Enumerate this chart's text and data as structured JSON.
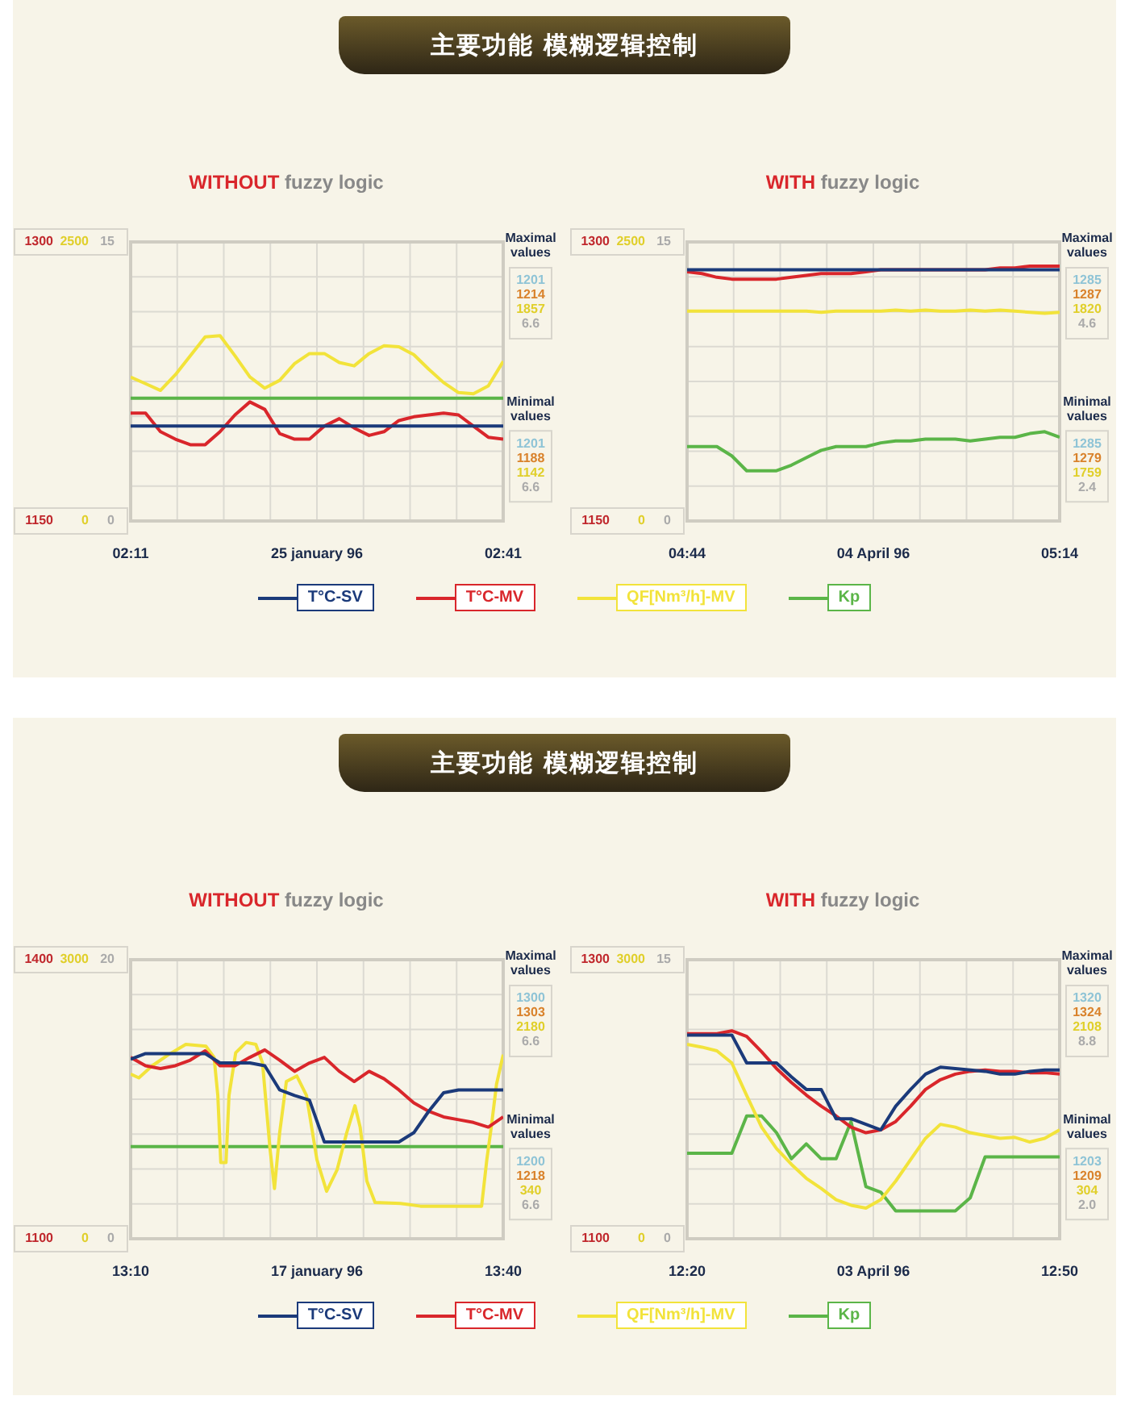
{
  "chart_data": [
    {
      "type": "line",
      "title": "主要功能 模糊逻辑控制",
      "subtitle": "WITHOUT fuzzy logic",
      "xlabel": "25 january 96",
      "grid": true,
      "marker": "none",
      "x": [
        2.183,
        2.203,
        2.223,
        2.243,
        2.263,
        2.283,
        2.303,
        2.323,
        2.343,
        2.363,
        2.383,
        2.403,
        2.423,
        2.443,
        2.463,
        2.483,
        2.503,
        2.523,
        2.543,
        2.563,
        2.583,
        2.603,
        2.623,
        2.643,
        2.663,
        2.683
      ],
      "xlim": [
        2.183,
        2.683
      ],
      "xticks": [
        {
          "value": 2.183,
          "label": "02:11"
        },
        {
          "value": 2.683,
          "label": "02:41"
        }
      ],
      "ylim": [
        1150,
        1300
      ],
      "yticks": [
        1150,
        1300
      ],
      "y2lim": [
        0,
        2500
      ],
      "y2ticks": [
        0,
        2500
      ],
      "y3lim": [
        0,
        15
      ],
      "y3ticks": [
        0,
        15
      ],
      "series": [
        {
          "color": "#1b3a7a",
          "axis": "y",
          "values": [
            1201,
            1201,
            1201,
            1201,
            1201,
            1201,
            1201,
            1201,
            1201,
            1201,
            1201,
            1201,
            1201,
            1201,
            1201,
            1201,
            1201,
            1201,
            1201,
            1201,
            1201,
            1201,
            1201,
            1201,
            1201,
            1201
          ]
        },
        {
          "color": "#d9262b",
          "axis": "y",
          "values": [
            1208,
            1208,
            1198,
            1194,
            1191,
            1191,
            1198,
            1207,
            1214,
            1210,
            1197,
            1194,
            1194,
            1201,
            1205,
            1200,
            1196,
            1198,
            1204,
            1206,
            1207,
            1208,
            1207,
            1201,
            1195,
            1194
          ]
        },
        {
          "color": "#f2e33a",
          "axis": "y2",
          "values": [
            1290,
            1230,
            1170,
            1310,
            1480,
            1650,
            1660,
            1480,
            1290,
            1190,
            1260,
            1410,
            1500,
            1500,
            1420,
            1390,
            1500,
            1570,
            1560,
            1490,
            1360,
            1240,
            1150,
            1140,
            1210,
            1430
          ]
        },
        {
          "color": "#5bb548",
          "axis": "y3",
          "values": [
            6.6,
            6.6,
            6.6,
            6.6,
            6.6,
            6.6,
            6.6,
            6.6,
            6.6,
            6.6,
            6.6,
            6.6,
            6.6,
            6.6,
            6.6,
            6.6,
            6.6,
            6.6,
            6.6,
            6.6,
            6.6,
            6.6,
            6.6,
            6.6,
            6.6,
            6.6
          ]
        }
      ],
      "annotations": [
        "Maximal values",
        "1201",
        "1214",
        "1857",
        "6.6",
        "Minimal values",
        "1201",
        "1188",
        "1142",
        "6.6"
      ]
    },
    {
      "type": "line",
      "subtitle": "WITH fuzzy logic",
      "xlabel": "04 April 96",
      "grid": true,
      "marker": "none",
      "legend": "bottom",
      "x": [
        4.733,
        4.753,
        4.773,
        4.793,
        4.813,
        4.833,
        4.853,
        4.873,
        4.893,
        4.913,
        4.933,
        4.953,
        4.973,
        4.993,
        5.013,
        5.033,
        5.053,
        5.073,
        5.093,
        5.113,
        5.133,
        5.153,
        5.173,
        5.193,
        5.213,
        5.233
      ],
      "xlim": [
        4.733,
        5.233
      ],
      "xticks": [
        {
          "value": 4.733,
          "label": "04:44"
        },
        {
          "value": 5.233,
          "label": "05:14"
        }
      ],
      "ylim": [
        1150,
        1300
      ],
      "yticks": [
        1150,
        1300
      ],
      "y2lim": [
        0,
        2500
      ],
      "y2ticks": [
        0,
        2500
      ],
      "y3lim": [
        0,
        15
      ],
      "y3ticks": [
        0,
        15
      ],
      "series": [
        {
          "name": "T°C-SV",
          "color": "#1b3a7a",
          "axis": "y",
          "values": [
            1285,
            1285,
            1285,
            1285,
            1285,
            1285,
            1285,
            1285,
            1285,
            1285,
            1285,
            1285,
            1285,
            1285,
            1285,
            1285,
            1285,
            1285,
            1285,
            1285,
            1285,
            1285,
            1285,
            1285,
            1285,
            1285
          ]
        },
        {
          "name": "T°C-MV",
          "color": "#d9262b",
          "axis": "y",
          "values": [
            1284,
            1283,
            1281,
            1280,
            1280,
            1280,
            1280,
            1281,
            1282,
            1283,
            1283,
            1283,
            1284,
            1285,
            1285,
            1285,
            1285,
            1285,
            1285,
            1285,
            1285,
            1286,
            1286,
            1287,
            1287,
            1287
          ]
        },
        {
          "name": "QF[Nm³/h]-MV",
          "color": "#f2e33a",
          "axis": "y2",
          "values": [
            1880,
            1880,
            1880,
            1880,
            1880,
            1880,
            1880,
            1880,
            1880,
            1870,
            1880,
            1880,
            1880,
            1880,
            1890,
            1880,
            1890,
            1880,
            1880,
            1890,
            1880,
            1890,
            1880,
            1870,
            1860,
            1870
          ]
        },
        {
          "name": "Kp",
          "color": "#5bb548",
          "axis": "y3",
          "values": [
            4,
            4,
            4,
            3.5,
            2.7,
            2.7,
            2.7,
            3,
            3.4,
            3.8,
            4,
            4,
            4,
            4.2,
            4.3,
            4.3,
            4.4,
            4.4,
            4.4,
            4.3,
            4.4,
            4.5,
            4.5,
            4.7,
            4.8,
            4.5
          ]
        }
      ],
      "annotations": [
        "Maximal values",
        "1285",
        "1287",
        "1820",
        "4.6",
        "Minimal values",
        "1285",
        "1279",
        "1759",
        "2.4"
      ]
    },
    {
      "type": "line",
      "title": "主要功能 模糊逻辑控制",
      "subtitle": "WITHOUT fuzzy logic",
      "xlabel": "17 january 96",
      "grid": true,
      "marker": "none",
      "x": [
        13.167,
        13.187,
        13.207,
        13.227,
        13.247,
        13.267,
        13.287,
        13.307,
        13.327,
        13.347,
        13.367,
        13.387,
        13.407,
        13.427,
        13.447,
        13.467,
        13.487,
        13.507,
        13.527,
        13.547,
        13.567,
        13.587,
        13.607,
        13.627,
        13.647,
        13.667
      ],
      "xlim": [
        13.167,
        13.667
      ],
      "xticks": [
        {
          "value": 13.167,
          "label": "13:10"
        },
        {
          "value": 13.667,
          "label": "13:40"
        }
      ],
      "ylim": [
        1100,
        1400
      ],
      "yticks": [
        1100,
        1400
      ],
      "y2lim": [
        0,
        3000
      ],
      "y2ticks": [
        0,
        3000
      ],
      "y3lim": [
        0,
        20
      ],
      "y3ticks": [
        0,
        20
      ],
      "series": [
        {
          "color": "#1b3a7a",
          "axis": "y",
          "values": [
            1293,
            1299,
            1299,
            1299,
            1299,
            1299,
            1289,
            1289,
            1289,
            1286,
            1260,
            1254,
            1249,
            1204,
            1204,
            1204,
            1204,
            1204,
            1204,
            1214,
            1237,
            1257,
            1260,
            1260,
            1260,
            1260
          ]
        },
        {
          "color": "#d9262b",
          "axis": "y",
          "values": [
            1295,
            1286,
            1283,
            1286,
            1292,
            1302,
            1286,
            1286,
            1295,
            1303,
            1292,
            1280,
            1289,
            1295,
            1280,
            1269,
            1280,
            1272,
            1260,
            1246,
            1237,
            1231,
            1228,
            1225,
            1220,
            1231
          ]
        },
        {
          "color": "#f2e33a",
          "axis": "y2",
          "x": [
            13.167,
            13.178,
            13.196,
            13.218,
            13.241,
            13.268,
            13.279,
            13.284,
            13.288,
            13.295,
            13.299,
            13.308,
            13.322,
            13.335,
            13.344,
            13.354,
            13.36,
            13.367,
            13.376,
            13.39,
            13.403,
            13.417,
            13.43,
            13.444,
            13.457,
            13.468,
            13.475,
            13.484,
            13.495,
            13.529,
            13.556,
            13.638,
            13.645,
            13.651,
            13.658,
            13.667
          ],
          "values": [
            1770,
            1730,
            1860,
            1980,
            2090,
            2070,
            1950,
            1540,
            820,
            820,
            1540,
            2000,
            2110,
            2090,
            1890,
            970,
            540,
            1140,
            1690,
            1750,
            1540,
            850,
            510,
            740,
            1140,
            1430,
            1200,
            620,
            390,
            380,
            350,
            350,
            850,
            1200,
            1660,
            1980
          ]
        },
        {
          "color": "#5bb548",
          "axis": "y3",
          "values": [
            6.6,
            6.6,
            6.6,
            6.6,
            6.6,
            6.6,
            6.6,
            6.6,
            6.6,
            6.6,
            6.6,
            6.6,
            6.6,
            6.6,
            6.6,
            6.6,
            6.6,
            6.6,
            6.6,
            6.6,
            6.6,
            6.6,
            6.6,
            6.6,
            6.6,
            6.6
          ]
        }
      ],
      "annotations": [
        "Maximal values",
        "1300",
        "1303",
        "2180",
        "6.6",
        "Minimal values",
        "1200",
        "1218",
        "340",
        "6.6"
      ]
    },
    {
      "type": "line",
      "subtitle": "WITH fuzzy logic",
      "xlabel": "03 April 96",
      "grid": true,
      "marker": "none",
      "legend": "bottom",
      "x": [
        12.333,
        12.353,
        12.373,
        12.393,
        12.413,
        12.433,
        12.453,
        12.473,
        12.493,
        12.513,
        12.533,
        12.553,
        12.573,
        12.593,
        12.613,
        12.633,
        12.653,
        12.673,
        12.693,
        12.713,
        12.733,
        12.753,
        12.773,
        12.793,
        12.813,
        12.833
      ],
      "xlim": [
        12.333,
        12.833
      ],
      "xticks": [
        {
          "value": 12.333,
          "label": "12:20"
        },
        {
          "value": 12.833,
          "label": "12:50"
        }
      ],
      "ylim": [
        1100,
        1300
      ],
      "yticks": [
        1100,
        1300
      ],
      "y2lim": [
        0,
        3000
      ],
      "y2ticks": [
        0,
        3000
      ],
      "y3lim": [
        0,
        15
      ],
      "y3ticks": [
        0,
        15
      ],
      "series": [
        {
          "name": "T°C-SV",
          "color": "#1b3a7a",
          "axis": "y",
          "values": [
            1246,
            1246,
            1246,
            1246,
            1226,
            1226,
            1226,
            1216,
            1207,
            1207,
            1186,
            1186,
            1182,
            1178,
            1195,
            1207,
            1218,
            1223,
            1222,
            1221,
            1220,
            1218,
            1218,
            1220,
            1221,
            1221
          ]
        },
        {
          "name": "T°C-MV",
          "color": "#d9262b",
          "axis": "y",
          "values": [
            1247,
            1247,
            1247,
            1249,
            1245,
            1234,
            1222,
            1212,
            1203,
            1195,
            1188,
            1180,
            1176,
            1178,
            1184,
            1195,
            1207,
            1214,
            1218,
            1220,
            1221,
            1220,
            1220,
            1219,
            1219,
            1218
          ]
        },
        {
          "name": "QF[Nm³/h]-MV",
          "color": "#f2e33a",
          "axis": "y2",
          "values": [
            2090,
            2060,
            2020,
            1890,
            1540,
            1200,
            970,
            800,
            650,
            540,
            420,
            360,
            330,
            420,
            620,
            850,
            1080,
            1230,
            1200,
            1140,
            1110,
            1080,
            1090,
            1040,
            1080,
            1170
          ]
        },
        {
          "name": "Kp",
          "color": "#5bb548",
          "axis": "y3",
          "values": [
            4.6,
            4.6,
            4.6,
            4.6,
            6.6,
            6.6,
            5.7,
            4.3,
            5.1,
            4.3,
            4.3,
            6.3,
            2.8,
            2.5,
            1.5,
            1.5,
            1.5,
            1.5,
            1.5,
            2.2,
            4.4,
            4.4,
            4.4,
            4.4,
            4.4,
            4.4
          ]
        }
      ],
      "annotations": [
        "Maximal values",
        "1320",
        "1324",
        "2108",
        "8.8",
        "Minimal values",
        "1203",
        "1209",
        "304",
        "2.0"
      ]
    }
  ]
}
